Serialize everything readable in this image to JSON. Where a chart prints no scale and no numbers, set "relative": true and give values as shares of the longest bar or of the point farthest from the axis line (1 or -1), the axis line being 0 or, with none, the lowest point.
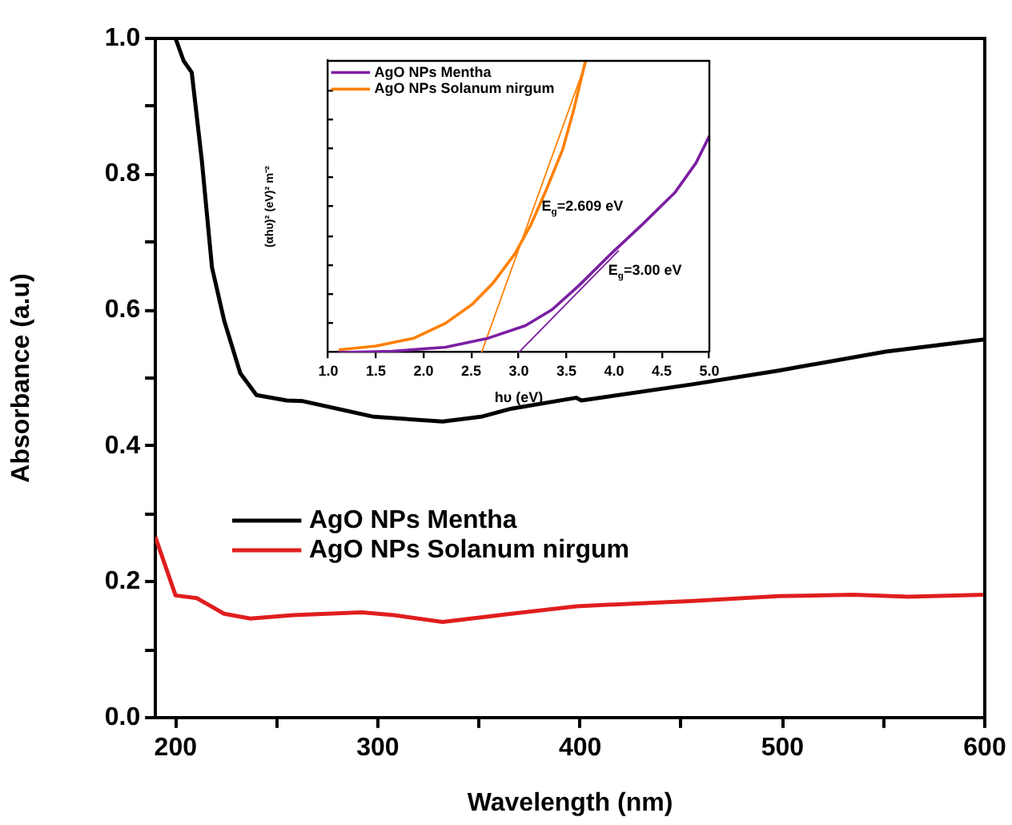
{
  "chart_data": [
    {
      "type": "line",
      "xlabel": "Wavelength (nm)",
      "ylabel": "Absorbance (a.u)",
      "xlim": [
        190,
        600
      ],
      "ylim": [
        0,
        1
      ],
      "xticks": [
        200,
        {
          "value": 250,
          "label": null
        },
        300,
        {
          "value": 350,
          "label": null
        },
        400,
        {
          "value": 450,
          "label": null
        },
        500,
        {
          "value": 550,
          "label": null
        },
        600
      ],
      "yticks": [
        {
          "value": 0,
          "label": "0.0"
        },
        {
          "value": 0.1,
          "label": null
        },
        {
          "value": 0.2,
          "label": "0.2"
        },
        {
          "value": 0.3,
          "label": null
        },
        {
          "value": 0.4,
          "label": "0.4"
        },
        {
          "value": 0.5,
          "label": null
        },
        {
          "value": 0.6,
          "label": "0.6"
        },
        {
          "value": 0.7,
          "label": null
        },
        {
          "value": 0.8,
          "label": "0.8"
        },
        {
          "value": 0.9,
          "label": null
        },
        {
          "value": 1,
          "label": "1.0"
        }
      ],
      "grid": false,
      "legend": "center left",
      "marker": "none",
      "line_style": "solid",
      "series": [
        {
          "name": "AgO NPs Mentha",
          "color": "#000000",
          "x": [
            200,
            204,
            208,
            213,
            218,
            224,
            232,
            240,
            255,
            263,
            298,
            332,
            351,
            366,
            398,
            400.6,
            456,
            498,
            551,
            600
          ],
          "values": [
            1.0,
            0.967,
            0.95,
            0.82,
            0.663,
            0.585,
            0.507,
            0.475,
            0.467,
            0.466,
            0.443,
            0.436,
            0.443,
            0.455,
            0.471,
            0.467,
            0.491,
            0.511,
            0.539,
            0.557
          ]
        },
        {
          "name": "AgO NPs Solanum nirgum",
          "color": "#e01e1e",
          "x": [
            190,
            200,
            210.5,
            224,
            237,
            258,
            292,
            308,
            332,
            366,
            398,
            456,
            498,
            535,
            562,
            600
          ],
          "values": [
            0.266,
            0.18,
            0.176,
            0.153,
            0.146,
            0.151,
            0.155,
            0.151,
            0.141,
            0.153,
            0.164,
            0.172,
            0.179,
            0.181,
            0.178,
            0.181
          ]
        }
      ]
    },
    {
      "type": "line",
      "xlabel": "hυ (eV)",
      "ylabel": "(αhυ)² (eV)² m⁻²",
      "relative": true,
      "xlim": [
        1,
        5
      ],
      "xticks": [
        {
          "value": 1,
          "label": "1.0"
        },
        {
          "value": 1.5,
          "label": "1.5"
        },
        {
          "value": 2,
          "label": "2.0"
        },
        {
          "value": 2.5,
          "label": "2.5"
        },
        {
          "value": 3,
          "label": "3.0"
        },
        {
          "value": 3.5,
          "label": "3.5"
        },
        {
          "value": 4,
          "label": "4.0"
        },
        {
          "value": 4.5,
          "label": "4.5"
        },
        {
          "value": 5,
          "label": "5.0"
        }
      ],
      "tick_labels": "x",
      "grid": false,
      "legend": "top left",
      "marker": "none",
      "line_style": "solid",
      "annotations": [
        {
          "text": "E$_{g}$=2.609 eV",
          "x": 3.24,
          "y": 0.5
        },
        {
          "text": "E$_{g}$=3.00 eV",
          "x": 3.94,
          "y": 0.28
        }
      ],
      "series": [
        {
          "name": "AgO NPs Mentha",
          "color": "#7b1fa2",
          "x": [
            1.11,
            1.67,
            2.23,
            2.68,
            3.07,
            3.35,
            3.63,
            3.97,
            4.3,
            4.64,
            4.86,
            5.0
          ],
          "values": [
            0,
            0.004,
            0.018,
            0.049,
            0.092,
            0.147,
            0.229,
            0.339,
            0.44,
            0.549,
            0.65,
            0.742
          ]
        },
        {
          "name": "AgO NPs Solanum nirgum",
          "color": "#ff8000",
          "x": [
            1.11,
            1.5,
            1.9,
            2.23,
            2.51,
            2.73,
            2.96,
            3.13,
            3.29,
            3.46,
            3.57,
            3.7
          ],
          "values": [
            0.009,
            0.022,
            0.049,
            0.1,
            0.165,
            0.238,
            0.339,
            0.44,
            0.559,
            0.696,
            0.824,
            1.0
          ]
        },
        {
          "type": "line",
          "color": "#ff8000",
          "x": [
            2.609,
            3.71
          ],
          "values": [
            0,
            1
          ]
        },
        {
          "type": "line",
          "color": "#7b1fa2",
          "x": [
            3.0,
            4.05
          ],
          "values": [
            0,
            0.35
          ]
        }
      ]
    }
  ]
}
